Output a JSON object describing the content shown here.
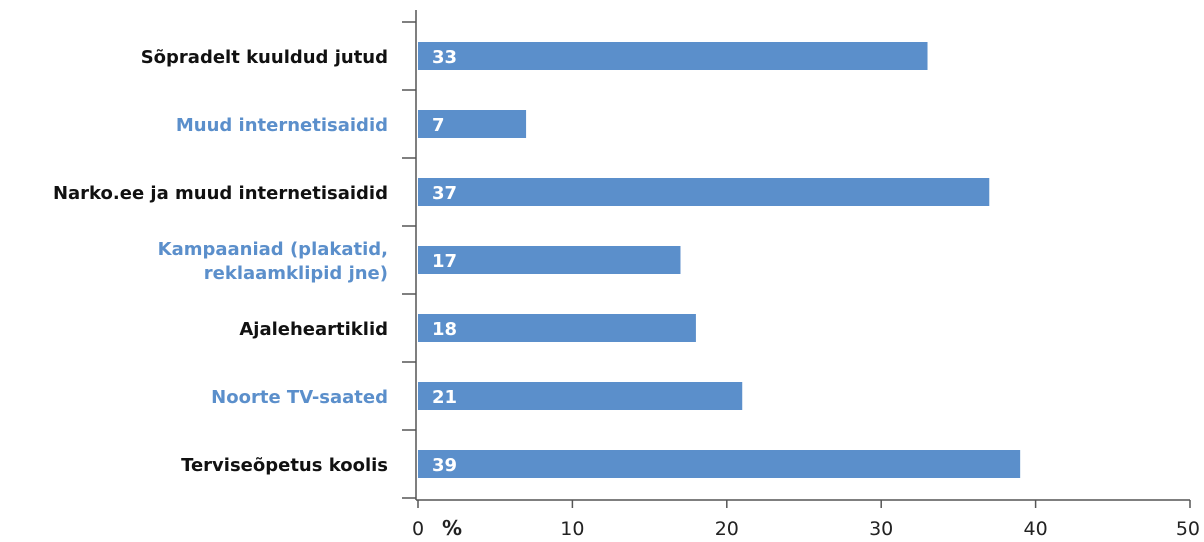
{
  "chart_data": {
    "type": "bar",
    "orientation": "horizontal",
    "categories": [
      [
        "Sõpradelt kuuldud jutud"
      ],
      [
        "Muud internetisaidid"
      ],
      [
        "Narko.ee ja muud internetisaidid"
      ],
      [
        "Kampaaniad (plakatid,",
        "reklaamklipid jne)"
      ],
      [
        "Ajaleheartiklid"
      ],
      [
        "Noorte TV-saated"
      ],
      [
        "Terviseõpetus koolis"
      ]
    ],
    "category_colors": [
      "#111111",
      "#5b8fcb",
      "#111111",
      "#5b8fcb",
      "#111111",
      "#5b8fcb",
      "#111111"
    ],
    "values": [
      33,
      7,
      37,
      17,
      18,
      21,
      39
    ],
    "value_labels": [
      "33",
      "7",
      "37",
      "17",
      "18",
      "21",
      "39"
    ],
    "x_ticks": [
      "0",
      "10",
      "20",
      "30",
      "40",
      "50"
    ],
    "xlim": [
      0,
      50
    ],
    "unit": "%",
    "bar_color": "#5b8fcb",
    "grid": false
  }
}
